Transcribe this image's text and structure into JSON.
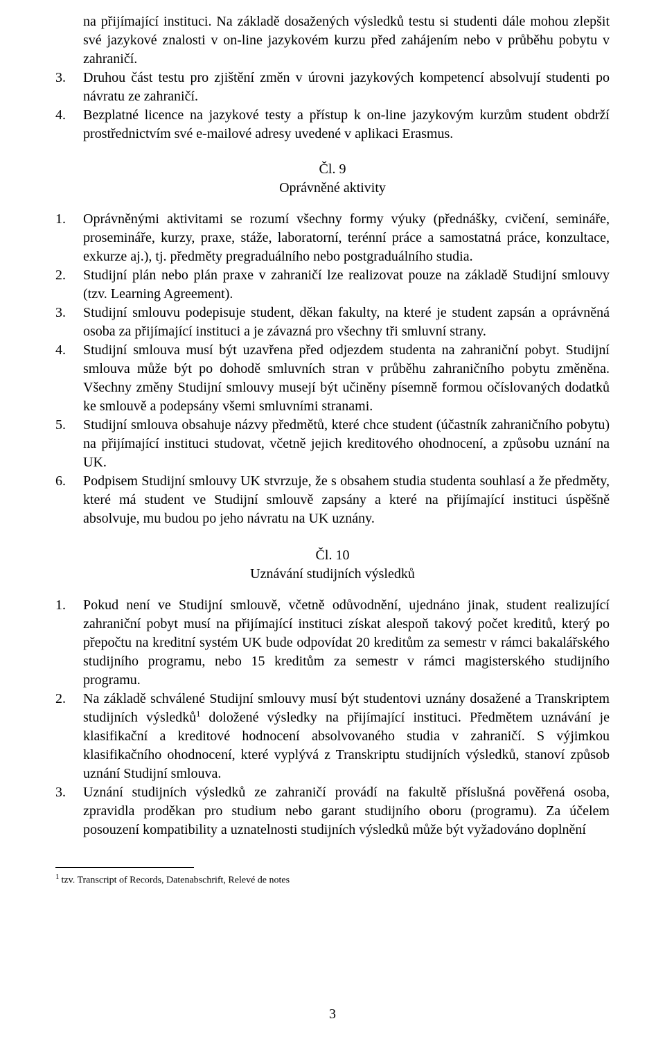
{
  "cont": {
    "pre": "na přijímající instituci. Na základě dosažených výsledků testu si studenti dále mohou zlepšit své jazykové znalosti v on-line jazykovém kurzu před zahájením nebo v průběhu pobytu v zahraničí.",
    "item3": "Druhou část testu pro zjištění změn v úrovni jazykových kompetencí absolvují studenti po návratu ze zahraničí.",
    "item4": "Bezplatné licence na jazykové testy a přístup k on-line jazykovým kurzům student obdrží prostřednictvím své e-mailové adresy uvedené v aplikaci Erasmus."
  },
  "art9": {
    "num_label": "Čl. 9",
    "title": "Oprávněné aktivity",
    "i1": "Oprávněnými aktivitami se rozumí všechny formy výuky (přednášky, cvičení, semináře, prosemináře, kurzy, praxe, stáže, laboratorní, terénní práce a samostatná práce, konzultace, exkurze aj.), tj. předměty pregraduálního nebo postgraduálního studia.",
    "i2": "Studijní plán nebo plán praxe v zahraničí lze realizovat pouze na základě Studijní smlouvy (tzv. Learning Agreement).",
    "i3": "Studijní smlouvu podepisuje student, děkan fakulty, na které je student zapsán a oprávněná osoba za přijímající instituci a je závazná pro všechny tři smluvní strany.",
    "i4": "Studijní smlouva musí být uzavřena před odjezdem studenta na zahraniční pobyt. Studijní smlouva může být po dohodě smluvních stran v průběhu zahraničního pobytu změněna. Všechny změny Studijní smlouvy musejí být učiněny písemně formou očíslovaných dodatků ke smlouvě a podepsány všemi smluvními stranami.",
    "i5": "Studijní smlouva obsahuje názvy předmětů, které chce student (účastník zahraničního pobytu) na přijímající instituci studovat, včetně jejich kreditového ohodnocení, a způsobu uznání na UK.",
    "i6": "Podpisem Studijní smlouvy UK stvrzuje, že s obsahem studia studenta souhlasí a že předměty, které má student ve Studijní smlouvě zapsány a které na přijímající instituci úspěšně absolvuje, mu budou po jeho návratu na UK uznány."
  },
  "art10": {
    "num_label": "Čl. 10",
    "title": "Uznávání studijních výsledků",
    "i1": "Pokud není ve Studijní smlouvě, včetně odůvodnění, ujednáno jinak, student realizující zahraniční pobyt musí na přijímající instituci získat alespoň takový počet kreditů, který po přepočtu na kreditní systém UK bude odpovídat 20 kreditům za semestr v rámci bakalářského studijního programu, nebo 15 kreditům za semestr v rámci magisterského studijního programu.",
    "i2a": "Na základě schválené Studijní smlouvy musí být studentovi uznány dosažené a Transkriptem studijních výsledků",
    "i2b": " doložené výsledky na přijímající instituci. Předmětem uznávání je klasifikační a kreditové hodnocení absolvovaného studia v zahraničí. S výjimkou klasifikačního ohodnocení, které vyplývá z Transkriptu studijních výsledků, stanoví způsob uznání Studijní smlouva.",
    "i3": "Uznání studijních výsledků ze zahraničí provádí na fakultě příslušná pověřená osoba, zpravidla proděkan pro studium nebo garant studijního oboru (programu). Za účelem posouzení kompatibility a uznatelnosti studijních výsledků může být vyžadováno doplnění"
  },
  "footnote": {
    "marker": "1",
    "text": "tzv. Transcript of Records, Datenabschrift, Relevé de notes"
  },
  "page_number": "3",
  "markers": {
    "m3": "3.",
    "m4": "4.",
    "n1": "1.",
    "n2": "2.",
    "n3": "3.",
    "n4": "4.",
    "n5": "5.",
    "n6": "6."
  }
}
